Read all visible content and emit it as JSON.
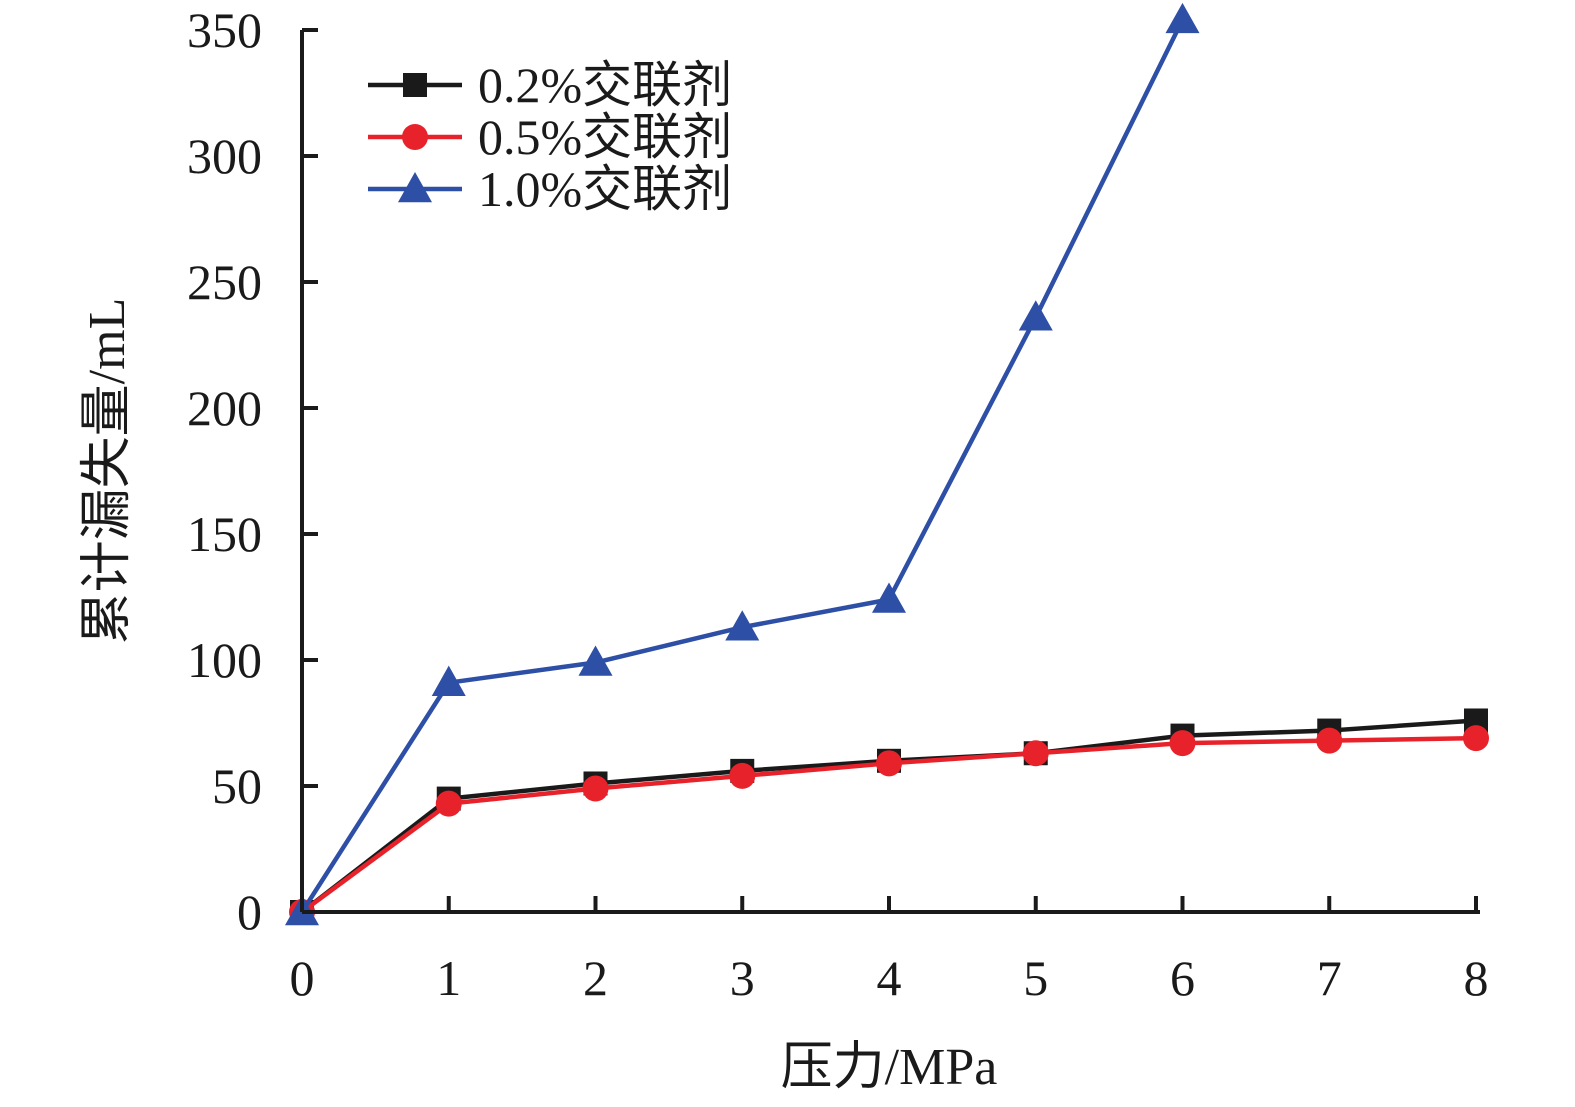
{
  "chart_data": {
    "type": "line",
    "title": "",
    "xlabel": "压力/MPa",
    "ylabel": "累计漏失量/mL",
    "xlim": [
      0,
      8
    ],
    "ylim": [
      0,
      350
    ],
    "xticks": [
      0,
      1,
      2,
      3,
      4,
      5,
      6,
      7,
      8
    ],
    "yticks": [
      0,
      50,
      100,
      150,
      200,
      250,
      300,
      350
    ],
    "grid": false,
    "legend_position": "top-left",
    "x": [
      0,
      1,
      2,
      3,
      4,
      5,
      6,
      7,
      8
    ],
    "series": [
      {
        "name": "0.2%交联剂",
        "color": "#1a1a1a",
        "marker": "square",
        "values": [
          0,
          45,
          51,
          56,
          60,
          63,
          70,
          72,
          76
        ]
      },
      {
        "name": "0.5%交联剂",
        "color": "#e8222a",
        "marker": "circle",
        "values": [
          0,
          43,
          49,
          54,
          59,
          63,
          67,
          68,
          69
        ]
      },
      {
        "name": "1.0%交联剂",
        "color": "#2e4fa6",
        "marker": "triangle",
        "values": [
          0,
          91,
          99,
          113,
          124,
          236,
          354,
          null,
          null
        ]
      }
    ]
  }
}
